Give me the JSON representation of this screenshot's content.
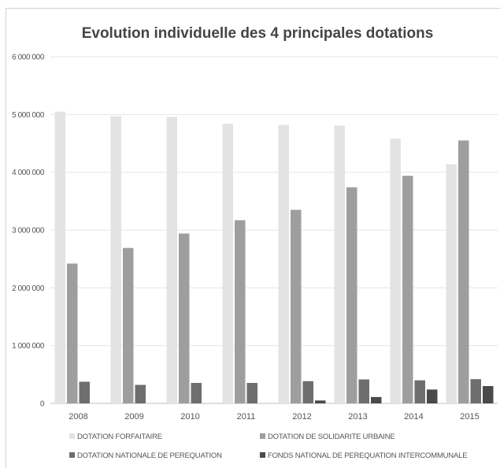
{
  "chart_data": {
    "type": "bar",
    "title": "Evolution individuelle des 4 principales dotations",
    "xlabel": "",
    "ylabel": "",
    "ylim": [
      0,
      6000000
    ],
    "yticks": [
      0,
      1000000,
      2000000,
      3000000,
      4000000,
      5000000,
      6000000
    ],
    "ytick_labels": [
      "0",
      "1 000 000",
      "2 000 000",
      "3 000 000",
      "4 000 000",
      "5 000 000",
      "6 000 000"
    ],
    "grid": true,
    "legend_position": "bottom",
    "categories": [
      "2008",
      "2009",
      "2010",
      "2011",
      "2012",
      "2013",
      "2014",
      "2015"
    ],
    "series": [
      {
        "name": "DOTATION FORFAITAIRE",
        "color": "#e3e3e3",
        "values": [
          5050000,
          4970000,
          4960000,
          4840000,
          4820000,
          4810000,
          4580000,
          4140000
        ]
      },
      {
        "name": "DOTATION DE SOLIDARITE URBAINE",
        "color": "#9e9e9e",
        "values": [
          2420000,
          2690000,
          2940000,
          3170000,
          3350000,
          3740000,
          3940000,
          4550000
        ]
      },
      {
        "name": "DOTATION NATIONALE DE PEREQUATION",
        "color": "#6e6e6e",
        "values": [
          375000,
          320000,
          355000,
          355000,
          385000,
          415000,
          400000,
          420000
        ]
      },
      {
        "name": "FONDS NATIONAL DE PEREQUATION INTERCOMMUNALE",
        "color": "#4a4a4a",
        "values": [
          0,
          0,
          0,
          0,
          50000,
          110000,
          240000,
          300000
        ]
      }
    ]
  }
}
